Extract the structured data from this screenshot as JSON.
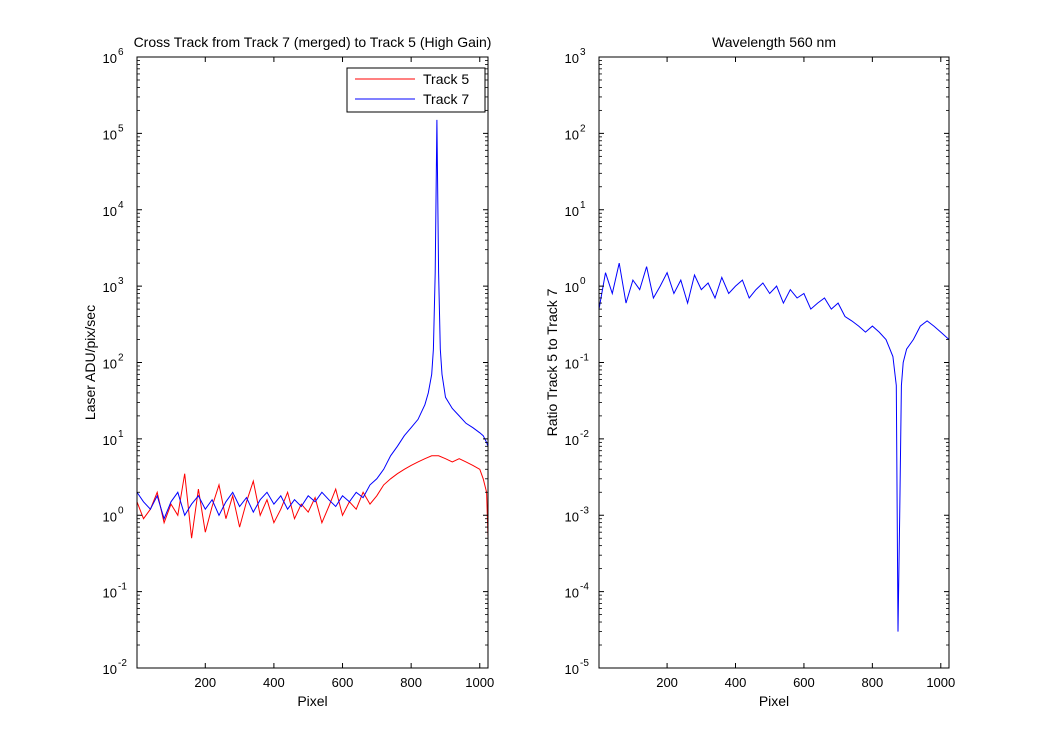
{
  "chart_data": [
    {
      "type": "line",
      "title": "Cross Track from Track 7 (merged) to Track 5 (High Gain)",
      "xlabel": "Pixel",
      "ylabel": "Laser ADU/pix/sec",
      "xlim": [
        1,
        1024
      ],
      "ylim": [
        0.01,
        1000000
      ],
      "yscale": "log",
      "xticks": [
        200,
        400,
        600,
        800,
        1000
      ],
      "xtick_labels": [
        "200",
        "400",
        "600",
        "800",
        "1000"
      ],
      "yticks": [
        0.01,
        0.1,
        1,
        10,
        100,
        1000,
        10000,
        100000,
        1000000
      ],
      "ytick_mantissa": [
        "10",
        "10",
        "10",
        "10",
        "10",
        "10",
        "10",
        "10",
        "10"
      ],
      "ytick_exponents": [
        "-2",
        "-1",
        "0",
        "1",
        "2",
        "3",
        "4",
        "5",
        "6"
      ],
      "legend_position": "top-right",
      "grid": false,
      "series": [
        {
          "name": "Track 5",
          "color": "#ff0000",
          "x": [
            1,
            20,
            40,
            60,
            80,
            100,
            120,
            140,
            160,
            180,
            200,
            220,
            240,
            260,
            280,
            300,
            320,
            340,
            360,
            380,
            400,
            420,
            440,
            460,
            480,
            500,
            520,
            540,
            560,
            580,
            600,
            620,
            640,
            660,
            680,
            700,
            720,
            740,
            760,
            780,
            800,
            820,
            840,
            860,
            880,
            900,
            920,
            940,
            960,
            980,
            1000,
            1010,
            1020,
            1024
          ],
          "y": [
            1.5,
            0.9,
            1.2,
            2.0,
            0.8,
            1.4,
            1.0,
            3.5,
            0.5,
            2.2,
            0.6,
            1.3,
            2.5,
            0.9,
            1.8,
            0.7,
            1.5,
            2.8,
            1.0,
            1.6,
            0.8,
            1.2,
            2.0,
            0.9,
            1.4,
            1.1,
            1.7,
            0.8,
            1.3,
            2.2,
            1.0,
            1.5,
            1.2,
            2.0,
            1.4,
            1.8,
            2.5,
            3.0,
            3.5,
            4.0,
            4.5,
            5.0,
            5.5,
            6.0,
            6.0,
            5.5,
            5.0,
            5.5,
            5.0,
            4.5,
            4.0,
            3.0,
            2.0,
            0.5
          ]
        },
        {
          "name": "Track 7",
          "color": "#0000ff",
          "x": [
            1,
            20,
            40,
            60,
            80,
            100,
            120,
            140,
            160,
            180,
            200,
            220,
            240,
            260,
            280,
            300,
            320,
            340,
            360,
            380,
            400,
            420,
            440,
            460,
            480,
            500,
            520,
            540,
            560,
            580,
            600,
            620,
            640,
            660,
            680,
            700,
            720,
            740,
            760,
            780,
            800,
            820,
            840,
            850,
            860,
            865,
            870,
            875,
            880,
            885,
            890,
            900,
            920,
            940,
            960,
            980,
            1000,
            1010,
            1020,
            1024
          ],
          "y": [
            2.0,
            1.5,
            1.2,
            1.8,
            0.9,
            1.5,
            2.0,
            1.0,
            1.4,
            1.8,
            1.2,
            1.6,
            1.0,
            1.5,
            2.0,
            1.3,
            1.7,
            1.1,
            1.6,
            2.0,
            1.4,
            1.8,
            1.2,
            1.6,
            1.3,
            1.8,
            1.5,
            2.0,
            1.6,
            1.3,
            1.8,
            1.5,
            2.0,
            1.7,
            2.5,
            3.0,
            4.0,
            6.0,
            8.0,
            11,
            14,
            18,
            28,
            40,
            70,
            150,
            1500,
            150000,
            1500,
            150,
            70,
            35,
            25,
            20,
            16,
            14,
            12,
            11,
            9,
            8
          ]
        }
      ]
    },
    {
      "type": "line",
      "title": "Wavelength 560 nm",
      "xlabel": "Pixel",
      "ylabel": "Ratio Track 5 to Track 7",
      "xlim": [
        1,
        1024
      ],
      "ylim": [
        1e-05,
        1000
      ],
      "yscale": "log",
      "xticks": [
        200,
        400,
        600,
        800,
        1000
      ],
      "xtick_labels": [
        "200",
        "400",
        "600",
        "800",
        "1000"
      ],
      "yticks": [
        1e-05,
        0.0001,
        0.001,
        0.01,
        0.1,
        1,
        10,
        100,
        1000
      ],
      "ytick_mantissa": [
        "10",
        "10",
        "10",
        "10",
        "10",
        "10",
        "10",
        "10",
        "10"
      ],
      "ytick_exponents": [
        "-5",
        "-4",
        "-3",
        "-2",
        "-1",
        "0",
        "1",
        "2",
        "3"
      ],
      "grid": false,
      "series": [
        {
          "color": "#0000ff",
          "x": [
            1,
            20,
            40,
            60,
            80,
            100,
            120,
            140,
            160,
            180,
            200,
            220,
            240,
            260,
            280,
            300,
            320,
            340,
            360,
            380,
            400,
            420,
            440,
            460,
            480,
            500,
            520,
            540,
            560,
            580,
            600,
            620,
            640,
            660,
            680,
            700,
            720,
            740,
            760,
            780,
            800,
            820,
            840,
            860,
            870,
            875,
            880,
            885,
            890,
            900,
            920,
            940,
            960,
            980,
            1000,
            1024
          ],
          "y": [
            0.5,
            1.5,
            0.8,
            2.0,
            0.6,
            1.2,
            0.9,
            1.8,
            0.7,
            1.0,
            1.5,
            0.8,
            1.2,
            0.6,
            1.4,
            0.9,
            1.1,
            0.7,
            1.3,
            0.8,
            1.0,
            1.2,
            0.7,
            0.9,
            1.1,
            0.8,
            1.0,
            0.6,
            0.9,
            0.7,
            0.8,
            0.5,
            0.6,
            0.7,
            0.5,
            0.6,
            0.4,
            0.35,
            0.3,
            0.25,
            0.3,
            0.25,
            0.2,
            0.12,
            0.05,
            3e-05,
            0.001,
            0.05,
            0.1,
            0.15,
            0.2,
            0.3,
            0.35,
            0.3,
            0.25,
            0.2
          ]
        }
      ]
    }
  ]
}
